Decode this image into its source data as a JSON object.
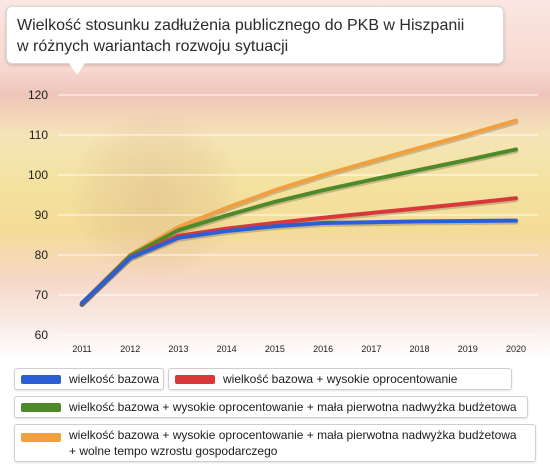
{
  "title": {
    "line1": "Wielkość stosunku zadłużenia publicznego do PKB w Hiszpanii",
    "line2": "w różnych wariantach rozwoju sytuacji"
  },
  "legend": [
    {
      "label": "wielkość bazowa",
      "color": "#2c5fd6"
    },
    {
      "label": "wielkość bazowa + wysokie oprocentowanie",
      "color": "#d9383a"
    },
    {
      "label": "wielkość bazowa + wysokie oprocentowanie + mała pierwotna nadwyżka budżetowa",
      "color": "#4e8a2a"
    },
    {
      "label": "wielkość bazowa + wysokie oprocentowanie + mała pierwotna nadwyżka budżetowa",
      "label2": "+ wolne tempo wzrostu gospodarczego",
      "color": "#f0a040"
    }
  ],
  "chart_data": {
    "type": "line",
    "title": "Wielkość stosunku zadłużenia publicznego do PKB w Hiszpanii w różnych wariantach rozwoju sytuacji",
    "xlabel": "",
    "ylabel": "",
    "x": [
      2011,
      2012,
      2013,
      2014,
      2015,
      2016,
      2017,
      2018,
      2019,
      2020
    ],
    "ylim": [
      60,
      120
    ],
    "yticks": [
      60,
      70,
      80,
      90,
      100,
      110,
      120
    ],
    "grid": true,
    "legend_position": "bottom",
    "series": [
      {
        "name": "wielkość bazowa",
        "color": "#2c5fd6",
        "values": [
          68.0,
          79.3,
          84.3,
          86.0,
          87.2,
          88.0,
          88.2,
          88.4,
          88.5,
          88.6
        ]
      },
      {
        "name": "wielkość bazowa + wysokie oprocentowanie",
        "color": "#d9383a",
        "values": [
          68.0,
          79.4,
          84.8,
          86.6,
          88.0,
          89.3,
          90.5,
          91.7,
          92.9,
          94.2
        ]
      },
      {
        "name": "wielkość bazowa + wysokie oprocentowanie + mała pierwotna nadwyżka budżetowa",
        "color": "#4e8a2a",
        "values": [
          68.0,
          79.8,
          86.2,
          89.9,
          93.3,
          96.2,
          98.8,
          101.3,
          103.8,
          106.4
        ]
      },
      {
        "name": "wielkość bazowa + wysokie oprocentowanie + mała pierwotna nadwyżka budżetowa + wolne tempo wzrostu gospodarczego",
        "color": "#f0a040",
        "values": [
          68.0,
          80.0,
          87.0,
          91.8,
          96.2,
          100.0,
          103.4,
          106.8,
          110.1,
          113.6
        ]
      }
    ]
  }
}
